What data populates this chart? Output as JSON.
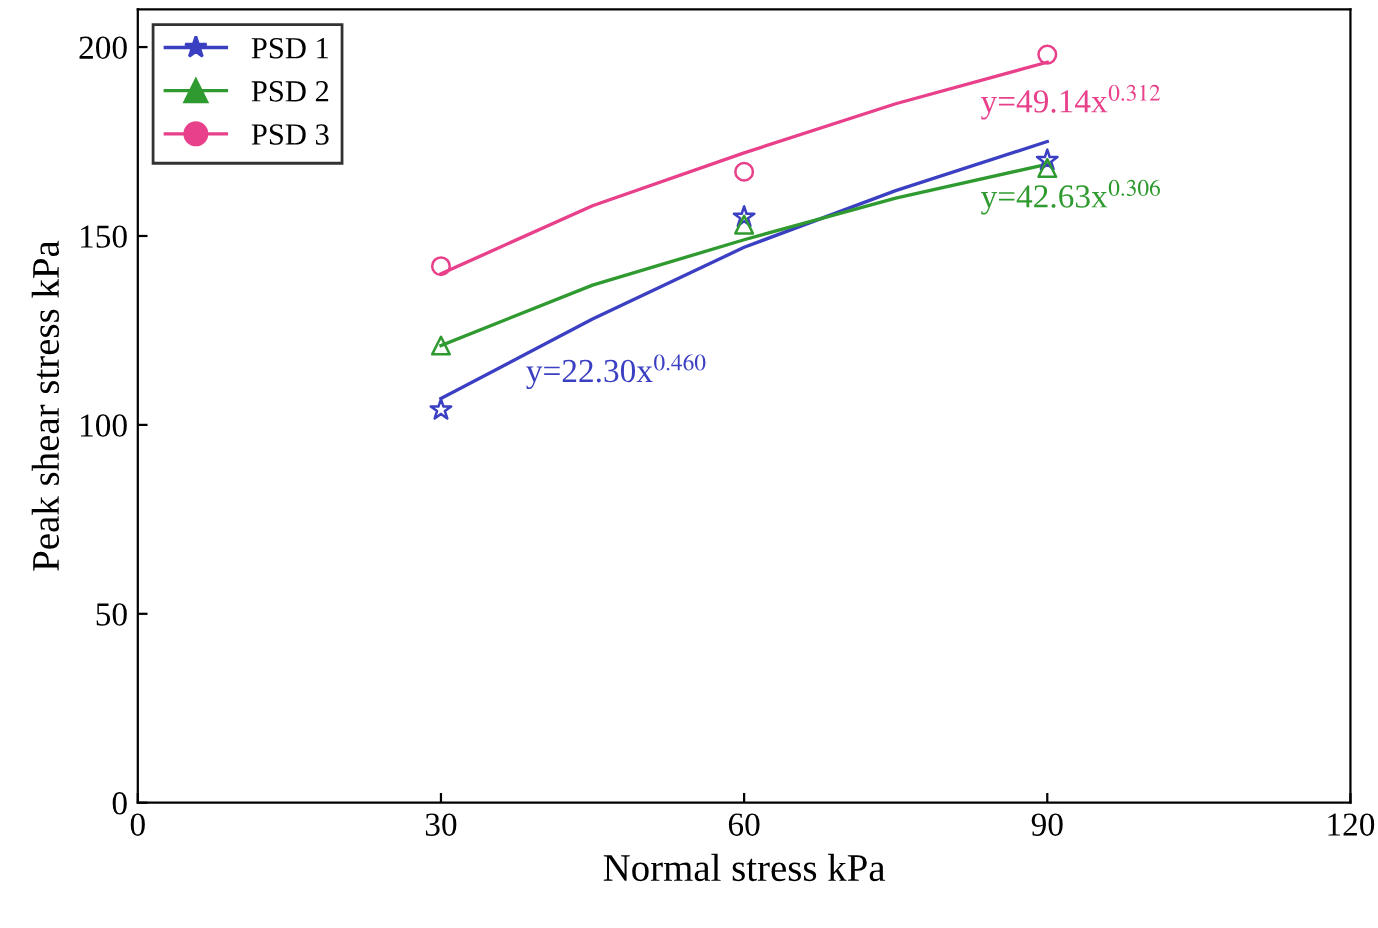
{
  "chart_data": {
    "type": "scatter",
    "xlabel": "Normal stress kPa",
    "ylabel": "Peak shear stress kPa",
    "xlim": [
      0,
      120
    ],
    "xticks": [
      0,
      30,
      60,
      90,
      120
    ],
    "ylim": [
      0,
      210
    ],
    "yticks": [
      0,
      50,
      100,
      150,
      200
    ],
    "grid": false,
    "legend": "top left",
    "series": [
      {
        "name": "PSD 1",
        "color": "#3b3fc2",
        "marker": "star",
        "x": [
          30,
          60,
          90
        ],
        "values": [
          104,
          155,
          170
        ]
      },
      {
        "name": "PSD 2",
        "color": "#2f9a2f",
        "marker": "triangle",
        "x": [
          30,
          60,
          90
        ],
        "values": [
          121,
          153,
          168
        ]
      },
      {
        "name": "PSD 3",
        "color": "#e8408a",
        "marker": "circle",
        "x": [
          30,
          60,
          90
        ],
        "values": [
          142,
          167,
          198
        ]
      },
      {
        "color": "#3b3fc2",
        "type": "line",
        "x": [
          30,
          45,
          60,
          75,
          90
        ],
        "values": [
          107,
          128,
          147,
          162,
          175
        ]
      },
      {
        "color": "#2f9a2f",
        "type": "line",
        "x": [
          30,
          45,
          60,
          75,
          90
        ],
        "values": [
          121,
          137,
          149,
          160,
          169
        ]
      },
      {
        "color": "#e8408a",
        "type": "line",
        "x": [
          30,
          45,
          60,
          75,
          90
        ],
        "values": [
          140,
          158,
          172,
          185,
          196
        ]
      }
    ],
    "annotations": [
      "y=22.30x$^{0.460}$",
      "y=42.63x$^{0.306}$",
      "y=49.14x$^{0.312}$"
    ]
  }
}
